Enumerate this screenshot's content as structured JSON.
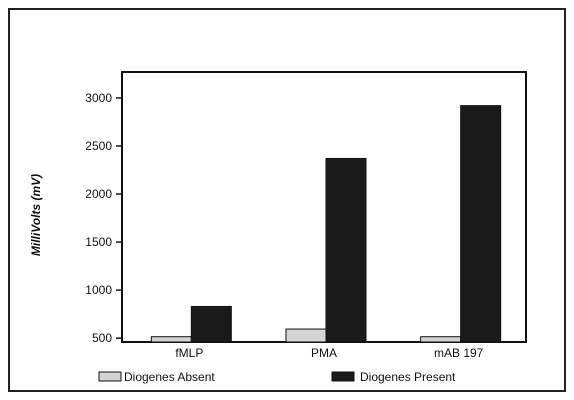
{
  "chart_data": {
    "type": "bar",
    "title": "",
    "xlabel": "",
    "ylabel": "MilliVolts (mV)",
    "categories": [
      "fMLP",
      "PMA",
      "mAB 197"
    ],
    "ylim": [
      460,
      3270
    ],
    "yticks": [
      500,
      1000,
      1500,
      2000,
      2500,
      3000
    ],
    "grid": false,
    "legend_position": "bottom",
    "series": [
      {
        "name": "Diogenes Absent",
        "values": [
          515,
          595,
          515
        ],
        "color": "#d4d4d4"
      },
      {
        "name": "Diogenes Present",
        "values": [
          830,
          2370,
          2920
        ],
        "color": "#1a1a1a"
      }
    ]
  }
}
